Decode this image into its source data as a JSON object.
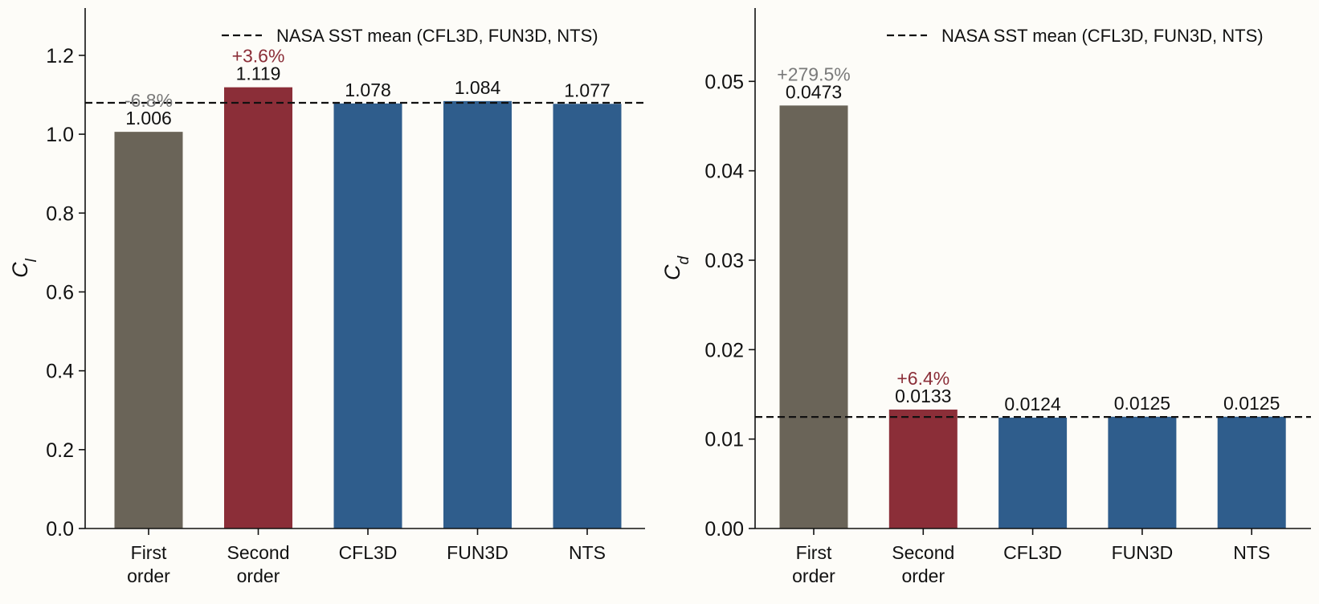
{
  "chart_data": [
    {
      "type": "bar",
      "categories": [
        [
          "First",
          "order"
        ],
        [
          "Second",
          "order"
        ],
        [
          "CFL3D"
        ],
        [
          "FUN3D"
        ],
        [
          "NTS"
        ]
      ],
      "values": [
        1.006,
        1.119,
        1.078,
        1.084,
        1.077
      ],
      "value_labels": [
        "1.006",
        "1.119",
        "1.078",
        "1.084",
        "1.077"
      ],
      "deviation_labels": [
        "-6.8%",
        "+3.6%",
        "",
        "",
        ""
      ],
      "bar_colors": [
        "#6a6458",
        "#8b2e38",
        "#2f5d8c",
        "#2f5d8c",
        "#2f5d8c"
      ],
      "deviation_colors": [
        "#7a7a7a",
        "#8b2e38",
        "",
        "",
        ""
      ],
      "reference_line": {
        "value": 1.0797,
        "label": "NASA SST mean (CFL3D, FUN3D, NTS)",
        "style": "dashed"
      },
      "ylabel_main": "C",
      "ylabel_sub": "l",
      "ylim": [
        0,
        1.32
      ],
      "yticks": [
        "0.0",
        "0.2",
        "0.4",
        "0.6",
        "0.8",
        "1.0",
        "1.2"
      ],
      "ytick_values": [
        0,
        0.2,
        0.4,
        0.6,
        0.8,
        1.0,
        1.2
      ],
      "legend_position": "top-right",
      "grid": false
    },
    {
      "type": "bar",
      "categories": [
        [
          "First",
          "order"
        ],
        [
          "Second",
          "order"
        ],
        [
          "CFL3D"
        ],
        [
          "FUN3D"
        ],
        [
          "NTS"
        ]
      ],
      "values": [
        0.0473,
        0.0133,
        0.0124,
        0.0125,
        0.0125
      ],
      "value_labels": [
        "0.0473",
        "0.0133",
        "0.0124",
        "0.0125",
        "0.0125"
      ],
      "deviation_labels": [
        "+279.5%",
        "+6.4%",
        "",
        "",
        ""
      ],
      "bar_colors": [
        "#6a6458",
        "#8b2e38",
        "#2f5d8c",
        "#2f5d8c",
        "#2f5d8c"
      ],
      "deviation_colors": [
        "#7a7a7a",
        "#8b2e38",
        "",
        "",
        ""
      ],
      "reference_line": {
        "value": 0.01247,
        "label": "NASA SST mean (CFL3D, FUN3D, NTS)",
        "style": "dashed"
      },
      "ylabel_main": "C",
      "ylabel_sub": "d",
      "ylim": [
        0,
        0.0582
      ],
      "yticks": [
        "0.00",
        "0.01",
        "0.02",
        "0.03",
        "0.04",
        "0.05"
      ],
      "ytick_values": [
        0,
        0.01,
        0.02,
        0.03,
        0.04,
        0.05
      ],
      "legend_position": "top-right",
      "grid": false
    }
  ]
}
